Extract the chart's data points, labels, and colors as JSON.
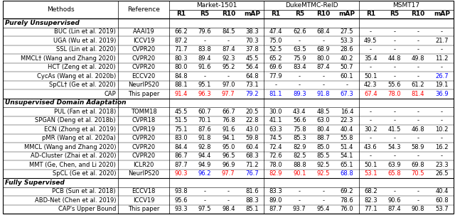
{
  "rows": [
    {
      "method": "BUC (Lin et al. 2019)",
      "ref": "AAAI19",
      "market": [
        "66.2",
        "79.6",
        "84.5",
        "38.3"
      ],
      "duke": [
        "47.4",
        "62.6",
        "68.4",
        "27.5"
      ],
      "msmt": [
        "-",
        "-",
        "-",
        "-"
      ],
      "market_c": [
        "k",
        "k",
        "k",
        "k"
      ],
      "duke_c": [
        "k",
        "k",
        "k",
        "k"
      ],
      "msmt_c": [
        "k",
        "k",
        "k",
        "k"
      ]
    },
    {
      "method": "UGA (Wu et al. 2019)",
      "ref": "ICCV19",
      "market": [
        "87.2",
        "-",
        "-",
        "70.3"
      ],
      "duke": [
        "75.0",
        "-",
        "-",
        "53.3"
      ],
      "msmt": [
        "49.5",
        "-",
        "-",
        "21.7"
      ],
      "market_c": [
        "k",
        "k",
        "k",
        "k"
      ],
      "duke_c": [
        "k",
        "k",
        "k",
        "k"
      ],
      "msmt_c": [
        "k",
        "k",
        "k",
        "k"
      ]
    },
    {
      "method": "SSL (Lin et al. 2020)",
      "ref": "CVPR20",
      "market": [
        "71.7",
        "83.8",
        "87.4",
        "37.8"
      ],
      "duke": [
        "52.5",
        "63.5",
        "68.9",
        "28.6"
      ],
      "msmt": [
        "-",
        "-",
        "-",
        "-"
      ],
      "market_c": [
        "k",
        "k",
        "k",
        "k"
      ],
      "duke_c": [
        "k",
        "k",
        "k",
        "k"
      ],
      "msmt_c": [
        "k",
        "k",
        "k",
        "k"
      ]
    },
    {
      "method": "MMCL† (Wang and Zhang 2020)",
      "ref": "CVPR20",
      "market": [
        "80.3",
        "89.4",
        "92.3",
        "45.5"
      ],
      "duke": [
        "65.2",
        "75.9",
        "80.0",
        "40.2"
      ],
      "msmt": [
        "35.4",
        "44.8",
        "49.8",
        "11.2"
      ],
      "market_c": [
        "k",
        "k",
        "k",
        "k"
      ],
      "duke_c": [
        "k",
        "k",
        "k",
        "k"
      ],
      "msmt_c": [
        "k",
        "k",
        "k",
        "k"
      ]
    },
    {
      "method": "HCT (Zeng et al. 2020)",
      "ref": "CVPR20",
      "market": [
        "80.0",
        "91.6",
        "95.2",
        "56.4"
      ],
      "duke": [
        "69.6",
        "83.4",
        "87.4",
        "50.7"
      ],
      "msmt": [
        "-",
        "-",
        "-",
        "-"
      ],
      "market_c": [
        "k",
        "k",
        "k",
        "k"
      ],
      "duke_c": [
        "k",
        "k",
        "k",
        "k"
      ],
      "msmt_c": [
        "k",
        "k",
        "k",
        "k"
      ]
    },
    {
      "method": "CycAs (Wang et al. 2020b)",
      "ref": "ECCV20",
      "market": [
        "84.8",
        "-",
        "-",
        "64.8"
      ],
      "duke": [
        "77.9",
        "-",
        "-",
        "60.1"
      ],
      "msmt": [
        "50.1",
        "-",
        "-",
        "26.7"
      ],
      "market_c": [
        "k",
        "k",
        "k",
        "k"
      ],
      "duke_c": [
        "k",
        "k",
        "k",
        "k"
      ],
      "msmt_c": [
        "k",
        "k",
        "k",
        "b"
      ]
    },
    {
      "method": "SpCL† (Ge et al. 2020)",
      "ref": "NeurIPS20",
      "market": [
        "88.1",
        "95.1",
        "97.0",
        "73.1"
      ],
      "duke": [
        "-",
        "-",
        "-",
        "-"
      ],
      "msmt": [
        "42.3",
        "55.6",
        "61.2",
        "19.1"
      ],
      "market_c": [
        "k",
        "k",
        "k",
        "k"
      ],
      "duke_c": [
        "k",
        "k",
        "k",
        "k"
      ],
      "msmt_c": [
        "k",
        "k",
        "k",
        "k"
      ]
    },
    {
      "method": "CAP",
      "ref": "This paper",
      "market": [
        "91.4",
        "96.3",
        "97.7",
        "79.2"
      ],
      "duke": [
        "81.1",
        "89.3",
        "91.8",
        "67.3"
      ],
      "msmt": [
        "67.4",
        "78.0",
        "81.4",
        "36.9"
      ],
      "market_c": [
        "r",
        "r",
        "r",
        "b"
      ],
      "duke_c": [
        "b",
        "b",
        "b",
        "b"
      ],
      "msmt_c": [
        "r",
        "r",
        "r",
        "b"
      ]
    },
    {
      "method": "PUL (Fan et al. 2018)",
      "ref": "TOMM18",
      "market": [
        "45.5",
        "60.7",
        "66.7",
        "20.5"
      ],
      "duke": [
        "30.0",
        "43.4",
        "48.5",
        "16.4"
      ],
      "msmt": [
        "-",
        "-",
        "-",
        "-"
      ],
      "market_c": [
        "k",
        "k",
        "k",
        "k"
      ],
      "duke_c": [
        "k",
        "k",
        "k",
        "k"
      ],
      "msmt_c": [
        "k",
        "k",
        "k",
        "k"
      ]
    },
    {
      "method": "SPGAN (Deng et al. 2018b)",
      "ref": "CVPR18",
      "market": [
        "51.5",
        "70.1",
        "76.8",
        "22.8"
      ],
      "duke": [
        "41.1",
        "56.6",
        "63.0",
        "22.3"
      ],
      "msmt": [
        "-",
        "-",
        "-",
        "-"
      ],
      "market_c": [
        "k",
        "k",
        "k",
        "k"
      ],
      "duke_c": [
        "k",
        "k",
        "k",
        "k"
      ],
      "msmt_c": [
        "k",
        "k",
        "k",
        "k"
      ]
    },
    {
      "method": "ECN (Zhong et al. 2019)",
      "ref": "CVPR19",
      "market": [
        "75.1",
        "87.6",
        "91.6",
        "43.0"
      ],
      "duke": [
        "63.3",
        "75.8",
        "80.4",
        "40.4"
      ],
      "msmt": [
        "30.2",
        "41.5",
        "46.8",
        "10.2"
      ],
      "market_c": [
        "k",
        "k",
        "k",
        "k"
      ],
      "duke_c": [
        "k",
        "k",
        "k",
        "k"
      ],
      "msmt_c": [
        "k",
        "k",
        "k",
        "k"
      ]
    },
    {
      "method": "pMR (Wang et al. 2020a)",
      "ref": "CVPR20",
      "market": [
        "83.0",
        "91.8",
        "94.1",
        "59.8"
      ],
      "duke": [
        "74.5",
        "85.3",
        "88.7",
        "55.8"
      ],
      "msmt": [
        "-",
        "-",
        "-",
        "-"
      ],
      "market_c": [
        "k",
        "k",
        "k",
        "k"
      ],
      "duke_c": [
        "k",
        "k",
        "k",
        "k"
      ],
      "msmt_c": [
        "k",
        "k",
        "k",
        "k"
      ]
    },
    {
      "method": "MMCL (Wang and Zhang 2020)",
      "ref": "CVPR20",
      "market": [
        "84.4",
        "92.8",
        "95.0",
        "60.4"
      ],
      "duke": [
        "72.4",
        "82.9",
        "85.0",
        "51.4"
      ],
      "msmt": [
        "43.6",
        "54.3",
        "58.9",
        "16.2"
      ],
      "market_c": [
        "k",
        "k",
        "k",
        "k"
      ],
      "duke_c": [
        "k",
        "k",
        "k",
        "k"
      ],
      "msmt_c": [
        "k",
        "k",
        "k",
        "k"
      ]
    },
    {
      "method": "AD-Cluster (Zhai et al. 2020)",
      "ref": "CVPR20",
      "market": [
        "86.7",
        "94.4",
        "96.5",
        "68.3"
      ],
      "duke": [
        "72.6",
        "82.5",
        "85.5",
        "54.1"
      ],
      "msmt": [
        "-",
        "-",
        "-",
        "-"
      ],
      "market_c": [
        "k",
        "k",
        "k",
        "k"
      ],
      "duke_c": [
        "k",
        "k",
        "k",
        "k"
      ],
      "msmt_c": [
        "k",
        "k",
        "k",
        "k"
      ]
    },
    {
      "method": "MMT (Ge, Chen, and Li 2020)",
      "ref": "ICLR20",
      "market": [
        "87.7",
        "94.9",
        "96.9",
        "71.2"
      ],
      "duke": [
        "78.0",
        "88.8",
        "92.5",
        "65.1"
      ],
      "msmt": [
        "50.1",
        "63.9",
        "69.8",
        "23.3"
      ],
      "market_c": [
        "k",
        "k",
        "k",
        "k"
      ],
      "duke_c": [
        "k",
        "k",
        "k",
        "k"
      ],
      "msmt_c": [
        "k",
        "k",
        "k",
        "k"
      ]
    },
    {
      "method": "SpCL (Ge et al. 2020)",
      "ref": "NeurIPS20",
      "market": [
        "90.3",
        "96.2",
        "97.7",
        "76.7"
      ],
      "duke": [
        "82.9",
        "90.1",
        "92.5",
        "68.8"
      ],
      "msmt": [
        "53.1",
        "65.8",
        "70.5",
        "26.5"
      ],
      "market_c": [
        "r",
        "b",
        "r",
        "b"
      ],
      "duke_c": [
        "r",
        "r",
        "r",
        "b"
      ],
      "msmt_c": [
        "r",
        "r",
        "r",
        "k"
      ]
    },
    {
      "method": "PCB (Sun et al. 2018)",
      "ref": "ECCV18",
      "market": [
        "93.8",
        "-",
        "-",
        "81.6"
      ],
      "duke": [
        "83.3",
        "-",
        "-",
        "69.2"
      ],
      "msmt": [
        "68.2",
        "-",
        "-",
        "40.4"
      ],
      "market_c": [
        "k",
        "k",
        "k",
        "k"
      ],
      "duke_c": [
        "k",
        "k",
        "k",
        "k"
      ],
      "msmt_c": [
        "k",
        "k",
        "k",
        "k"
      ]
    },
    {
      "method": "ABD-Net (Chen et al. 2019)",
      "ref": "ICCV19",
      "market": [
        "95.6",
        "-",
        "-",
        "88.3"
      ],
      "duke": [
        "89.0",
        "-",
        "-",
        "78.6"
      ],
      "msmt": [
        "82.3",
        "90.6",
        "-",
        "60.8"
      ],
      "market_c": [
        "k",
        "k",
        "k",
        "k"
      ],
      "duke_c": [
        "k",
        "k",
        "k",
        "k"
      ],
      "msmt_c": [
        "k",
        "k",
        "k",
        "k"
      ]
    },
    {
      "method": "CAP's Upper Bound",
      "ref": "This paper",
      "market": [
        "93.3",
        "97.5",
        "98.4",
        "85.1"
      ],
      "duke": [
        "87.7",
        "93.7",
        "95.4",
        "76.0"
      ],
      "msmt": [
        "77.1",
        "87.4",
        "90.8",
        "53.7"
      ],
      "market_c": [
        "k",
        "k",
        "k",
        "k"
      ],
      "duke_c": [
        "k",
        "k",
        "k",
        "k"
      ],
      "msmt_c": [
        "k",
        "k",
        "k",
        "k"
      ]
    }
  ],
  "sections": [
    {
      "header": "Purely Unsupervised",
      "start": 0,
      "end": 7
    },
    {
      "header": "Unsupervised Domain Adaptation",
      "start": 8,
      "end": 15
    },
    {
      "header": "Fully Supervised",
      "start": 16,
      "end": 18
    }
  ],
  "color_map": {
    "r": "#FF0000",
    "b": "#0000FF",
    "k": "#000000"
  },
  "font_size": 6.0,
  "header_font_size": 6.5
}
